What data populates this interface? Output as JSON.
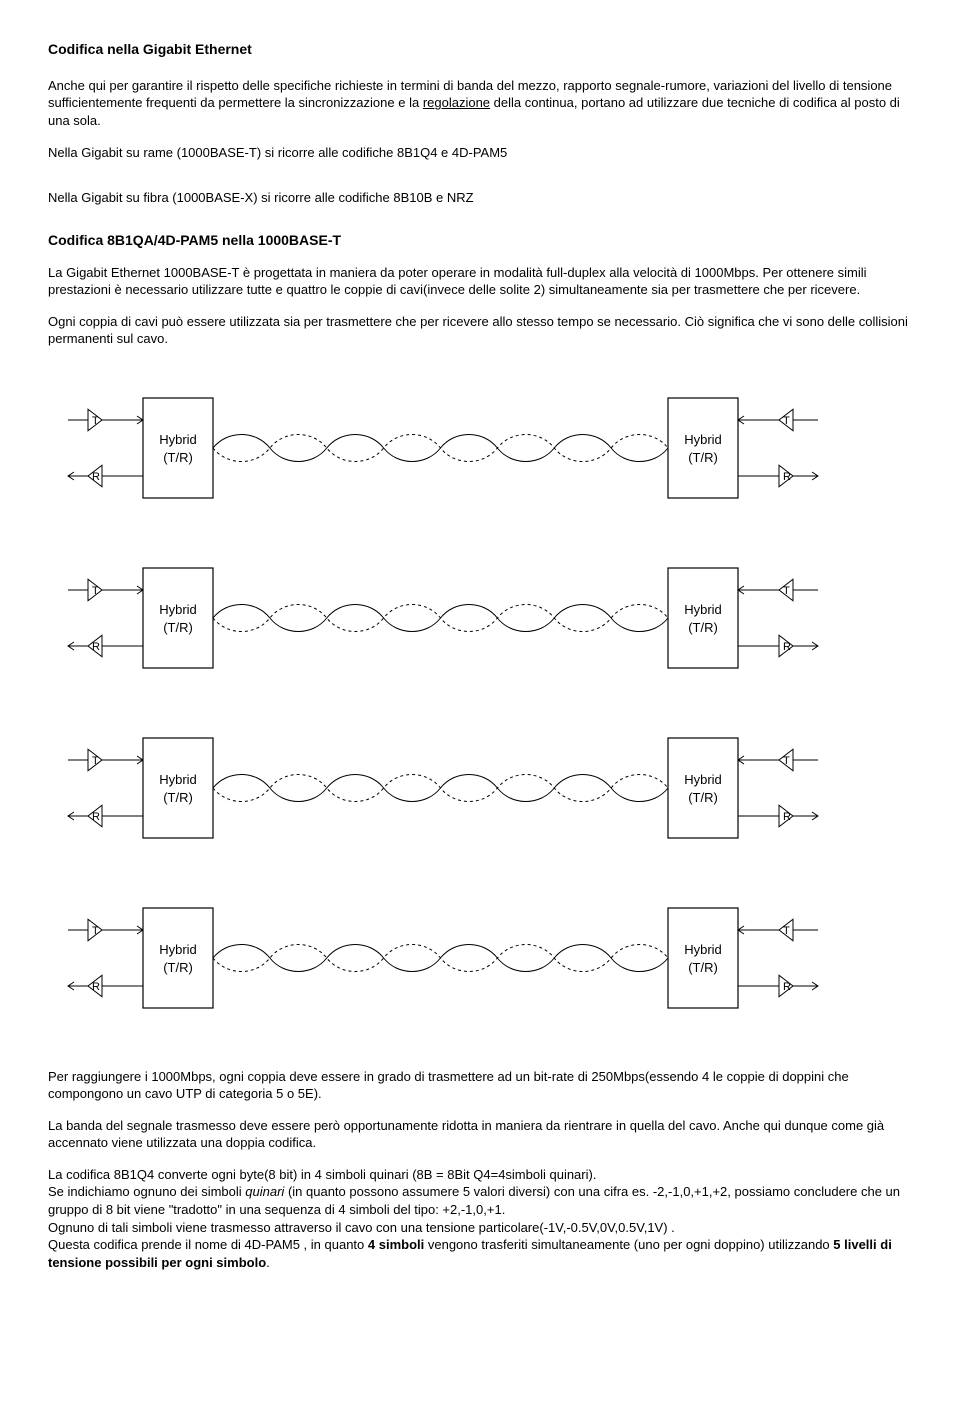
{
  "title": "Codifica nella Gigabit Ethernet",
  "p1": "Anche qui per garantire il rispetto delle specifiche richieste in termini di banda del mezzo, rapporto segnale-rumore, variazioni del livello di tensione sufficientemente frequenti da permettere la sincronizzazione e la ",
  "p1_underlined": "regolazione",
  "p1_cont": " della continua, portano ad utilizzare due tecniche di codifica al posto di una sola.",
  "p2": "Nella Gigabit su rame (1000BASE-T) si ricorre alle codifiche 8B1Q4 e 4D-PAM5",
  "p3": "Nella Gigabit su fibra (1000BASE-X) si ricorre alle codifiche 8B10B e NRZ",
  "h2": "Codifica 8B1QA/4D-PAM5 nella 1000BASE-T",
  "p4": "La Gigabit Ethernet 1000BASE-T è progettata in maniera da poter operare in modalità full-duplex alla velocità di 1000Mbps. Per ottenere simili prestazioni è necessario utilizzare tutte e quattro le coppie di cavi(invece delle solite 2) simultaneamente sia per trasmettere che per ricevere.",
  "p5": "Ogni coppia di cavi può essere utilizzata sia per trasmettere che per ricevere allo stesso tempo se necessario. Ciò significa che vi sono delle collisioni permanenti sul cavo.",
  "diagram": {
    "pairs": 4,
    "hybrid_label_line1": "Hybrid",
    "hybrid_label_line2": "(T/R)",
    "t_label": "T",
    "r_label": "R",
    "box_stroke": "#000000",
    "cable_stroke": "#000000",
    "box_fill": "#ffffff"
  },
  "p6": "Per raggiungere i 1000Mbps, ogni coppia deve essere in grado di trasmettere ad un bit-rate di 250Mbps(essendo 4 le coppie di doppini che compongono un cavo UTP di categoria 5 o 5E).",
  "p7": "La banda del segnale trasmesso deve essere però opportunamente ridotta in maniera da rientrare in quella del cavo. Anche qui dunque come già accennato viene utilizzata una doppia codifica.",
  "p8a": "La codifica 8B1Q4 converte ogni byte(8 bit) in 4 simboli quinari (8B = 8Bit   Q4=4simboli quinari).",
  "p8b_pre": "Se indichiamo ognuno dei simboli ",
  "p8b_italic": "quinari",
  "p8b_post": " (in quanto possono assumere 5 valori diversi) con una cifra es. -2,-1,0,+1,+2, possiamo concludere che un gruppo di 8 bit viene \"tradotto\" in una sequenza di 4 simboli del tipo: +2,-1,0,+1.",
  "p8c": "Ognuno di tali simboli viene trasmesso attraverso il cavo con una tensione particolare(-1V,-0.5V,0V,0.5V,1V) .",
  "p8d_pre": "Questa codifica prende il nome di 4D-PAM5 , in quanto ",
  "p8d_bold1": "4 simboli",
  "p8d_mid": " vengono trasferiti simultaneamente (uno per ogni doppino) utilizzando ",
  "p8d_bold2": "5 livelli di tensione possibili per ogni simbolo",
  "p8d_post": "."
}
